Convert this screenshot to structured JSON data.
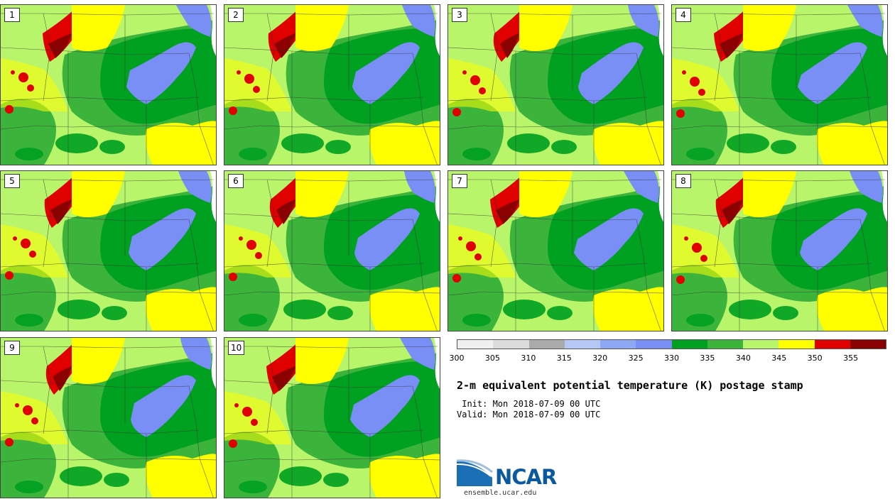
{
  "panels": [
    "1",
    "2",
    "3",
    "4",
    "5",
    "6",
    "7",
    "8",
    "9",
    "10"
  ],
  "colorbar": {
    "colors": [
      "#f0f0f0",
      "#dcdcdc",
      "#aaaaaa",
      "#b5c7f5",
      "#8ea8f5",
      "#7a8ff5",
      "#00a020",
      "#3cb43c",
      "#b9f56a",
      "#ffff00",
      "#e00000",
      "#8b0000"
    ],
    "ticks": [
      "300",
      "305",
      "310",
      "315",
      "320",
      "325",
      "330",
      "335",
      "340",
      "345",
      "350",
      "355"
    ]
  },
  "title": "2-m equivalent potential temperature (K) postage stamp",
  "init": " Init: Mon 2018-07-09 00 UTC",
  "valid": "Valid: Mon 2018-07-09 00 UTC",
  "logo": {
    "text": "NCAR",
    "site": "ensemble.ucar.edu"
  }
}
